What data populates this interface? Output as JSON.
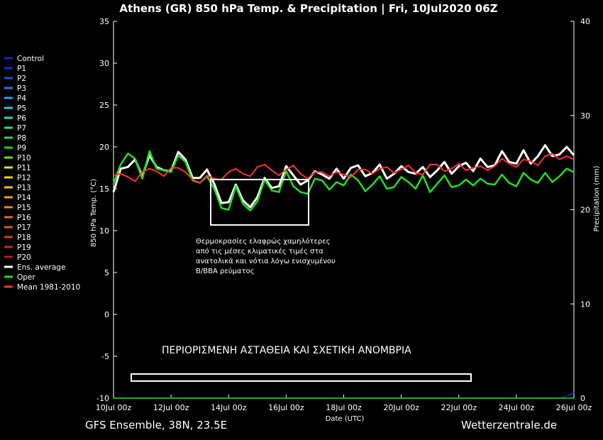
{
  "chart_data": {
    "type": "line",
    "title": "Athens  (GR)  850 hPa Temp. & Precipitation | Fri, 10Jul2020 06Z",
    "ylabel": "850 hPa Temp. (°C)",
    "y2label": "Precipitation (mm)",
    "xlabel": "Date (UTC)",
    "ylim": [
      -10,
      35
    ],
    "y2lim": [
      0,
      40
    ],
    "yticks": [
      "35",
      "30",
      "25",
      "20",
      "15",
      "10",
      "5",
      "0",
      "-5",
      "-10"
    ],
    "y2ticks": [
      "40",
      "30",
      "20",
      "10",
      "0"
    ],
    "xlim": [
      "2020-07-10 00:00",
      "2020-07-26 00:00"
    ],
    "x_step_hours": 6,
    "xticks": [
      "10Jul 00z",
      "12Jul 00z",
      "14Jul 00z",
      "16Jul 00z",
      "18Jul 00z",
      "20Jul 00z",
      "22Jul 00z",
      "24Jul 00z",
      "26Jul 00z"
    ],
    "grid": false,
    "legend_position": "left",
    "legend": [
      {
        "name": "Control",
        "color": "#2020c0"
      },
      {
        "name": "P1",
        "color": "#1a2ed0"
      },
      {
        "name": "P2",
        "color": "#1e50e6"
      },
      {
        "name": "P3",
        "color": "#2a78f0"
      },
      {
        "name": "P4",
        "color": "#30a0f0"
      },
      {
        "name": "P5",
        "color": "#30c8e8"
      },
      {
        "name": "P6",
        "color": "#30d8b8"
      },
      {
        "name": "P7",
        "color": "#30d890"
      },
      {
        "name": "P8",
        "color": "#30d060"
      },
      {
        "name": "P9",
        "color": "#20d020"
      },
      {
        "name": "P10",
        "color": "#70e020"
      },
      {
        "name": "P11",
        "color": "#e0e040"
      },
      {
        "name": "P12",
        "color": "#e8d020"
      },
      {
        "name": "P13",
        "color": "#f0c020"
      },
      {
        "name": "P14",
        "color": "#f0a020"
      },
      {
        "name": "P15",
        "color": "#f08828"
      },
      {
        "name": "P16",
        "color": "#e86828"
      },
      {
        "name": "P17",
        "color": "#d85828"
      },
      {
        "name": "P18",
        "color": "#d04028"
      },
      {
        "name": "P19",
        "color": "#c03020"
      },
      {
        "name": "P20",
        "color": "#b02020"
      },
      {
        "name": "Ens. average",
        "color": "#ffffff"
      },
      {
        "name": "Oper",
        "color": "#20e020"
      },
      {
        "name": "Mean 1981-2010",
        "color": "#ff3030"
      }
    ],
    "series": [
      {
        "name": "Ens. average",
        "color": "#ffffff",
        "values": [
          14.6,
          17.4,
          17.6,
          18.5,
          16.5,
          19.0,
          17.6,
          17.2,
          17.1,
          19.4,
          18.5,
          16.3,
          16.3,
          17.3,
          15.6,
          13.3,
          13.4,
          15.5,
          13.6,
          12.8,
          14.0,
          16.3,
          15.1,
          15.3,
          17.7,
          16.6,
          15.5,
          16.0,
          17.1,
          16.7,
          16.2,
          17.4,
          16.2,
          17.5,
          17.8,
          16.5,
          16.9,
          17.9,
          16.2,
          16.8,
          17.7,
          17.0,
          16.8,
          17.6,
          16.4,
          17.2,
          18.2,
          16.8,
          17.7,
          18.1,
          17.1,
          18.6,
          17.6,
          17.8,
          19.5,
          18.2,
          18.0,
          19.6,
          18.0,
          18.9,
          20.2,
          18.9,
          19.1,
          20.0,
          19.0
        ]
      },
      {
        "name": "Oper",
        "color": "#20e020",
        "values": [
          15.6,
          17.9,
          19.2,
          18.6,
          16.2,
          19.5,
          17.4,
          17.2,
          17.0,
          19.0,
          18.2,
          16.0,
          15.7,
          16.5,
          15.0,
          12.7,
          12.5,
          15.3,
          13.2,
          12.4,
          13.5,
          16.1,
          14.8,
          14.6,
          17.1,
          15.3,
          14.6,
          14.4,
          16.2,
          16.0,
          14.9,
          15.8,
          15.4,
          16.7,
          16.0,
          14.7,
          15.5,
          16.5,
          15.0,
          15.2,
          16.4,
          15.8,
          15.0,
          16.6,
          14.6,
          15.6,
          16.6,
          15.2,
          15.4,
          16.1,
          15.4,
          16.2,
          15.6,
          15.5,
          16.7,
          15.7,
          15.3,
          16.9,
          16.1,
          15.7,
          16.9,
          15.8,
          16.5,
          17.4,
          17.0
        ]
      },
      {
        "name": "Mean 1981-2010",
        "color": "#ff3030",
        "values": [
          16.6,
          16.8,
          16.4,
          15.9,
          17.0,
          17.4,
          17.1,
          16.5,
          17.5,
          17.5,
          17.0,
          16.1,
          15.7,
          16.6,
          16.2,
          16.1,
          17.0,
          17.4,
          16.8,
          16.5,
          17.6,
          17.9,
          17.2,
          16.6,
          17.3,
          17.8,
          16.8,
          16.2,
          17.0,
          17.0,
          16.5,
          17.0,
          16.7,
          16.4,
          17.3,
          17.3,
          16.8,
          17.4,
          17.6,
          16.9,
          17.3,
          17.8,
          16.9,
          16.7,
          17.9,
          17.9,
          17.1,
          17.4,
          18.0,
          17.2,
          17.5,
          17.7,
          17.2,
          17.7,
          18.6,
          18.0,
          17.6,
          18.5,
          18.3,
          17.8,
          18.9,
          19.2,
          18.5,
          18.9,
          18.5
        ]
      }
    ],
    "precipitation": {
      "series": [
        {
          "name": "Control",
          "color": "#2020c0",
          "values": [
            0,
            0,
            0,
            0,
            0,
            0,
            0,
            0,
            0,
            0,
            0,
            0,
            0,
            0,
            0,
            0,
            0,
            0,
            0,
            0,
            0,
            0,
            0,
            0,
            0,
            0,
            0,
            0,
            0,
            0,
            0,
            0,
            0,
            0,
            0,
            0,
            0,
            0,
            0,
            0,
            0,
            0,
            0,
            0,
            0,
            0,
            0,
            0,
            0,
            0,
            0,
            0,
            0,
            0,
            0,
            0,
            0,
            0,
            0,
            0,
            0,
            0,
            0,
            0.2,
            0.6
          ]
        },
        {
          "name": "Oper",
          "color": "#20e020",
          "values": [
            0,
            0,
            0,
            0,
            0,
            0,
            0,
            0,
            0,
            0,
            0,
            0,
            0,
            0,
            0,
            0,
            0,
            0,
            0,
            0,
            0,
            0,
            0,
            0,
            0,
            0,
            0,
            0,
            0,
            0,
            0,
            0,
            0,
            0,
            0,
            0,
            0,
            0,
            0,
            0,
            0,
            0,
            0,
            0,
            0,
            0,
            0,
            0,
            0,
            0,
            0,
            0,
            0,
            0,
            0,
            0,
            0,
            0,
            0,
            0,
            0,
            0,
            0,
            0,
            0
          ]
        }
      ]
    },
    "annotations": {
      "box_text_lines": [
        "Θερμοκρασίες ελαφρώς χαμηλότερες",
        "από τις μέσες κλιματικές τιμές στα",
        "ανατολικά και νότια λόγω ενισχυμένου",
        "Β/ΒΒΑ ρεύματος"
      ],
      "banner": "ΠΕΡΙΟΡΙΣΜΕΝΗ ΑΣΤΑΘΕΙΑ ΚΑΙ ΣΧΕΤΙΚΗ ΑΝΟΜΒΡΙΑ"
    }
  },
  "footer": {
    "left": "GFS Ensemble, 38N, 23.5E",
    "right": "Wetterzentrale.de"
  }
}
